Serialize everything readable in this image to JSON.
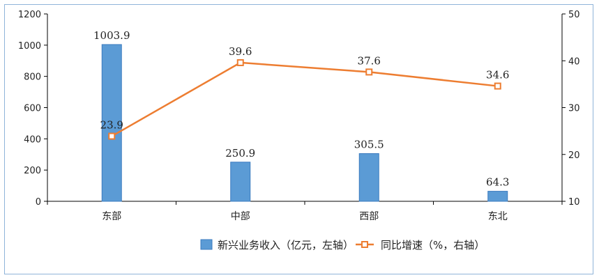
{
  "chart_data": {
    "type": "bar+line",
    "categories": [
      "东部",
      "中部",
      "西部",
      "东北"
    ],
    "series": [
      {
        "name": "新兴业务收入（亿元，左轴）",
        "type": "bar",
        "axis": "left",
        "values": [
          1003.9,
          250.9,
          305.5,
          64.3
        ],
        "labels": [
          "1003.9",
          "250.9",
          "305.5",
          "64.3"
        ],
        "color": "#5b9bd5"
      },
      {
        "name": "同比增速（%，右轴）",
        "type": "line",
        "axis": "right",
        "values": [
          23.9,
          39.6,
          37.6,
          34.6
        ],
        "labels": [
          "23.9",
          "39.6",
          "37.6",
          "34.6"
        ],
        "color": "#ed7d31"
      }
    ],
    "ylim_left": [
      0,
      1200
    ],
    "yticks_left": [
      "0",
      "200",
      "400",
      "600",
      "800",
      "1000",
      "1200"
    ],
    "ylim_right": [
      10,
      50
    ],
    "yticks_right": [
      "10",
      "20",
      "30",
      "40",
      "50"
    ],
    "legend_position": "bottom",
    "grid": false
  }
}
